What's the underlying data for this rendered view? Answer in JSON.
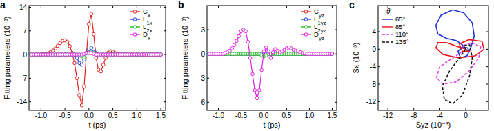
{
  "chart_data": [
    {
      "type": "line",
      "title": "a",
      "x_label": "t (ps)",
      "y_label": "Fitting parameters (10⁻³)",
      "x": [
        -1.2,
        -1.15,
        -1.1,
        -1.05,
        -1.0,
        -0.95,
        -0.9,
        -0.85,
        -0.8,
        -0.75,
        -0.7,
        -0.65,
        -0.6,
        -0.55,
        -0.5,
        -0.45,
        -0.4,
        -0.35,
        -0.3,
        -0.25,
        -0.2,
        -0.15,
        -0.1,
        -0.05,
        0,
        0.05,
        0.1,
        0.15,
        0.2,
        0.25,
        0.3,
        0.35,
        0.4,
        0.45,
        0.5,
        0.55,
        0.6,
        0.65,
        0.7,
        0.75,
        0.8,
        0.85,
        0.9,
        0.95,
        1.0,
        1.05,
        1.1,
        1.15,
        1.2,
        1.25,
        1.3,
        1.35,
        1.4,
        1.45,
        1.5
      ],
      "xlim": [
        -1.25,
        1.6
      ],
      "xticks": [
        {
          "value": -1.0,
          "label": "-1.0"
        },
        {
          "value": -0.5,
          "label": "-0.5"
        },
        {
          "value": 0,
          "label": "0.0"
        },
        {
          "value": 0.5,
          "label": "0.5"
        },
        {
          "value": 1.0,
          "label": "1.0"
        },
        {
          "value": 1.5,
          "label": "1.5"
        }
      ],
      "ylim": [
        -16.5,
        14.5
      ],
      "yticks": [
        -14,
        -7,
        0,
        7,
        14
      ],
      "grid": false,
      "legend": "upper right",
      "series": [
        {
          "name": "Cx",
          "color": "#e0201b",
          "marker": "circle",
          "line_style": "solid",
          "values": [
            0,
            0,
            0,
            0,
            0,
            0.1,
            0.2,
            0.4,
            0.7,
            1.2,
            1.8,
            2.6,
            3.4,
            4.0,
            4.2,
            3.8,
            2.5,
            0.5,
            -2.5,
            -7,
            -12,
            -15,
            -9.5,
            0.5,
            9,
            12,
            6,
            -1,
            -4.5,
            -5,
            -3,
            -1,
            0.5,
            1.0,
            0.8,
            0.4,
            0.1,
            0,
            0,
            0,
            0,
            0,
            0,
            0,
            0,
            0,
            0,
            0,
            0,
            0,
            0,
            0,
            0,
            0,
            0
          ]
        },
        {
          "name": "L1x",
          "color": "#1f3fd6",
          "marker": "circle",
          "line_style": "solid",
          "values": [
            0,
            0,
            0,
            0,
            0,
            0,
            0,
            0,
            0,
            0,
            0,
            0,
            0,
            0,
            0,
            0,
            0,
            0,
            0,
            -1,
            -2.5,
            -3,
            -1.5,
            0.5,
            1.5,
            2,
            1.5,
            0.5,
            0,
            0,
            0,
            0,
            0,
            0,
            0,
            0,
            0,
            0,
            0,
            0,
            0,
            0,
            0,
            0,
            0,
            0,
            0,
            0,
            0,
            0,
            0,
            0,
            0,
            0,
            0
          ]
        },
        {
          "name": "L2x",
          "color": "#22c322",
          "marker": "circle",
          "line_style": "solid",
          "values": [
            0,
            0,
            0,
            0,
            0,
            0,
            0,
            0,
            0,
            0,
            0,
            0,
            0,
            0,
            0,
            0,
            0,
            0,
            0,
            0,
            0,
            -0.5,
            -0.8,
            -0.3,
            0.5,
            0.8,
            0.4,
            0,
            0,
            0,
            0,
            0,
            0,
            0,
            0,
            0,
            0,
            0,
            0,
            0,
            0,
            0,
            0,
            0,
            0,
            0,
            0,
            0,
            0,
            0,
            0,
            0,
            0,
            0,
            0
          ]
        },
        {
          "name": "Dx",
          "color": "#e020e0",
          "marker": "circle",
          "line_style": "solid",
          "values": [
            0,
            0,
            0,
            0,
            0,
            0,
            0,
            0,
            0,
            0,
            0,
            0,
            0,
            0,
            0,
            0,
            0,
            0,
            0,
            0,
            0,
            0,
            0.2,
            0.4,
            0.5,
            0.4,
            0.2,
            0,
            0,
            0,
            0,
            0,
            0,
            0,
            0,
            0,
            0,
            0,
            0,
            0,
            0,
            0,
            0,
            0,
            0,
            0,
            0,
            0,
            0,
            0,
            0,
            0,
            0,
            0,
            0
          ]
        }
      ]
    },
    {
      "type": "line",
      "title": "b",
      "x_label": "t (ps)",
      "y_label": "Fitting parameters (10⁻³)",
      "x": [
        -1.2,
        -1.15,
        -1.1,
        -1.05,
        -1.0,
        -0.95,
        -0.9,
        -0.85,
        -0.8,
        -0.75,
        -0.7,
        -0.65,
        -0.6,
        -0.55,
        -0.5,
        -0.45,
        -0.4,
        -0.35,
        -0.3,
        -0.25,
        -0.2,
        -0.15,
        -0.1,
        -0.05,
        0,
        0.05,
        0.1,
        0.15,
        0.2,
        0.25,
        0.3,
        0.35,
        0.4,
        0.45,
        0.5,
        0.55,
        0.6,
        0.65,
        0.7,
        0.75,
        0.8,
        0.85,
        0.9,
        0.95,
        1.0,
        1.05,
        1.1,
        1.15,
        1.2,
        1.25,
        1.3,
        1.35,
        1.4,
        1.45,
        1.5
      ],
      "xlim": [
        -1.25,
        1.6
      ],
      "xticks": [
        {
          "value": -1.0,
          "label": "-1.0"
        },
        {
          "value": -0.5,
          "label": "-0.5"
        },
        {
          "value": 0,
          "label": "0.0"
        },
        {
          "value": 0.5,
          "label": "0.5"
        },
        {
          "value": 1.0,
          "label": "1.0"
        },
        {
          "value": 1.5,
          "label": "1.5"
        }
      ],
      "ylim": [
        -7,
        6
      ],
      "yticks": [
        -6,
        -3,
        0,
        3
      ],
      "grid": false,
      "legend": "upper right",
      "series": [
        {
          "name": "Cyz",
          "color": "#e0201b",
          "marker": "circle",
          "line_style": "solid",
          "values": [
            0,
            0,
            0,
            0,
            0,
            0,
            0,
            0,
            0,
            0,
            0,
            0,
            0,
            0,
            0,
            0,
            0,
            0,
            0,
            0,
            0,
            0,
            0,
            0,
            0,
            0,
            0,
            0,
            0,
            0,
            0,
            0,
            0,
            0,
            0,
            0,
            0,
            0,
            0,
            0,
            0,
            0,
            0,
            0,
            0,
            0,
            0,
            0,
            0,
            0,
            0,
            0,
            0,
            0,
            0
          ]
        },
        {
          "name": "L1yz",
          "color": "#1f3fd6",
          "marker": "circle",
          "line_style": "solid",
          "values": [
            0,
            0,
            0,
            0,
            0,
            0,
            0,
            0,
            0,
            0,
            0,
            0,
            0,
            0,
            0,
            0,
            0,
            0,
            0,
            0,
            0,
            0,
            0,
            0,
            0,
            0,
            0,
            0,
            0,
            0,
            0,
            0,
            0,
            0,
            0,
            0,
            0,
            0,
            0,
            0,
            0,
            0,
            0,
            0,
            0,
            0,
            0,
            0,
            0,
            0,
            0,
            0,
            0,
            0,
            0
          ]
        },
        {
          "name": "L2yz",
          "color": "#22c322",
          "marker": "circle",
          "line_style": "solid",
          "values": [
            0,
            0,
            0,
            0,
            0,
            0,
            0,
            0,
            0,
            0,
            0,
            0,
            0,
            0,
            0,
            0,
            0,
            0,
            0,
            0,
            0,
            0,
            0,
            -0.2,
            -0.3,
            -0.2,
            0,
            0,
            0,
            0,
            0,
            0,
            0,
            0,
            0,
            0,
            0,
            0,
            0,
            0,
            0,
            0,
            0,
            0,
            0,
            0,
            0,
            0,
            0,
            0,
            0,
            0,
            0,
            0,
            0
          ]
        },
        {
          "name": "Dyz",
          "color": "#e020e0",
          "marker": "circle",
          "line_style": "solid",
          "values": [
            0,
            0,
            0,
            0,
            0,
            0,
            0,
            0.1,
            0.2,
            0.4,
            0.7,
            1.1,
            1.6,
            2.2,
            2.8,
            3.0,
            2.8,
            1.5,
            -0.5,
            -2.5,
            -4.5,
            -5.5,
            -4.5,
            -2,
            0.3,
            0.8,
            0.3,
            -0.5,
            0.2,
            0.6,
            0.4,
            0.2,
            0.3,
            0.5,
            0.7,
            0.8,
            0.7,
            0.5,
            0.4,
            0.3,
            0.2,
            0.1,
            0.05,
            0,
            0,
            0,
            0,
            0,
            0,
            0,
            0,
            0,
            0,
            0,
            0
          ]
        }
      ]
    },
    {
      "type": "line",
      "title": "c",
      "x_label": "Syz (10⁻³)",
      "y_label": "Sx (10⁻³)",
      "xlim": [
        -13.5,
        3.5
      ],
      "xticks": [
        -12,
        -8,
        -4,
        0
      ],
      "ylim": [
        -14,
        10
      ],
      "yticks": [
        -12,
        -8,
        -4,
        0,
        4
      ],
      "grid": false,
      "legend": "upper left",
      "legend_title": "θ",
      "series": [
        {
          "name": "65°",
          "color": "#1c2fd8",
          "marker": "none",
          "line_style": "solid",
          "x": [
            0,
            -0.5,
            -1.5,
            -3,
            -4.3,
            -4.6,
            -3.8,
            -2,
            -0.3,
            1,
            1.3,
            0.8,
            0.2,
            -0.8,
            -1.2,
            -0.5,
            0.3,
            0.5,
            0
          ],
          "values": [
            0,
            1,
            2,
            2.5,
            3.5,
            5.5,
            7.8,
            9,
            8.3,
            6,
            3,
            0.5,
            -1.5,
            -2,
            -0.5,
            0.5,
            0.3,
            -0.5,
            0
          ]
        },
        {
          "name": "85°",
          "color": "#e8141a",
          "marker": "none",
          "line_style": "solid",
          "x": [
            0,
            -1,
            -3,
            -4.3,
            -4.6,
            -3.5,
            -1,
            1.5,
            2.8,
            2.5,
            0.5,
            -1,
            -0.5,
            0.5,
            0
          ],
          "values": [
            0,
            0.5,
            1.5,
            1.5,
            0.3,
            -1.2,
            -2,
            -1.5,
            0,
            1.8,
            2.2,
            1.2,
            -0.5,
            -0.5,
            0
          ]
        },
        {
          "name": "110°",
          "color": "#e33de3",
          "marker": "none",
          "line_style": "dashed",
          "x": [
            0,
            -1,
            -2.5,
            -4,
            -4.5,
            -3.5,
            -1.5,
            0.5,
            2,
            2.3,
            1,
            -0.5,
            0
          ],
          "values": [
            0,
            -1,
            -2.5,
            -4,
            -6.5,
            -8,
            -7.5,
            -5,
            -2,
            0.5,
            1.5,
            0.8,
            0
          ]
        },
        {
          "name": "135°",
          "color": "#111111",
          "marker": "none",
          "line_style": "dashed",
          "x": [
            0,
            -1,
            -2.5,
            -3.6,
            -3.3,
            -2,
            -0.5,
            0.6,
            1,
            0.6,
            -0.3,
            0
          ],
          "values": [
            0,
            -2,
            -5,
            -8.5,
            -11.5,
            -12.5,
            -10.5,
            -6,
            -2,
            1,
            0.8,
            0
          ]
        }
      ]
    }
  ]
}
